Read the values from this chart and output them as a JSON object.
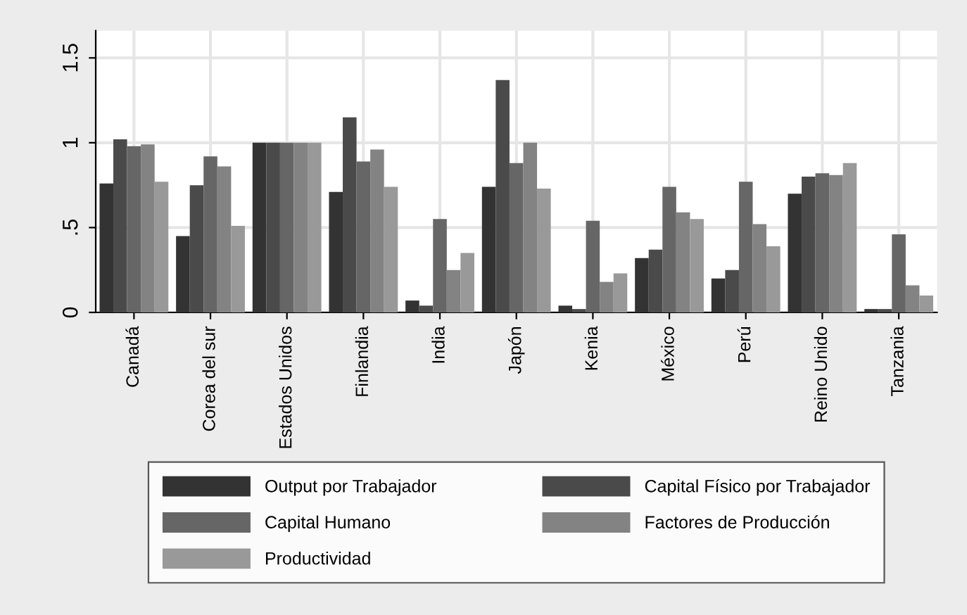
{
  "chart_data": {
    "type": "bar",
    "categories": [
      "Canadá",
      "Corea del sur",
      "Estados Unidos",
      "Finlandia",
      "India",
      "Japón",
      "Kenia",
      "México",
      "Perú",
      "Reino Unido",
      "Tanzania"
    ],
    "series": [
      {
        "name": "Output por Trabajador",
        "color": "#333333",
        "values": [
          0.76,
          0.45,
          1.0,
          0.71,
          0.07,
          0.74,
          0.04,
          0.32,
          0.2,
          0.7,
          0.02
        ]
      },
      {
        "name": "Capital Físico por Trabajador",
        "color": "#4a4a4a",
        "values": [
          1.02,
          0.75,
          1.0,
          1.15,
          0.04,
          1.37,
          0.02,
          0.37,
          0.25,
          0.8,
          0.02
        ]
      },
      {
        "name": "Capital Humano",
        "color": "#666666",
        "values": [
          0.98,
          0.92,
          1.0,
          0.89,
          0.55,
          0.88,
          0.54,
          0.74,
          0.77,
          0.82,
          0.46
        ]
      },
      {
        "name": "Factores de Producción",
        "color": "#838383",
        "values": [
          0.99,
          0.86,
          1.0,
          0.96,
          0.25,
          1.0,
          0.18,
          0.59,
          0.52,
          0.81,
          0.16
        ]
      },
      {
        "name": "Productividad",
        "color": "#999999",
        "values": [
          0.77,
          0.51,
          1.0,
          0.74,
          0.35,
          0.73,
          0.23,
          0.55,
          0.39,
          0.88,
          0.1
        ]
      }
    ],
    "ylim": [
      0,
      1.66
    ],
    "yticks": [
      0,
      {
        "value": 0.5,
        "label": ".5"
      },
      1,
      1.5
    ],
    "grid": true,
    "legend": "bottom"
  }
}
